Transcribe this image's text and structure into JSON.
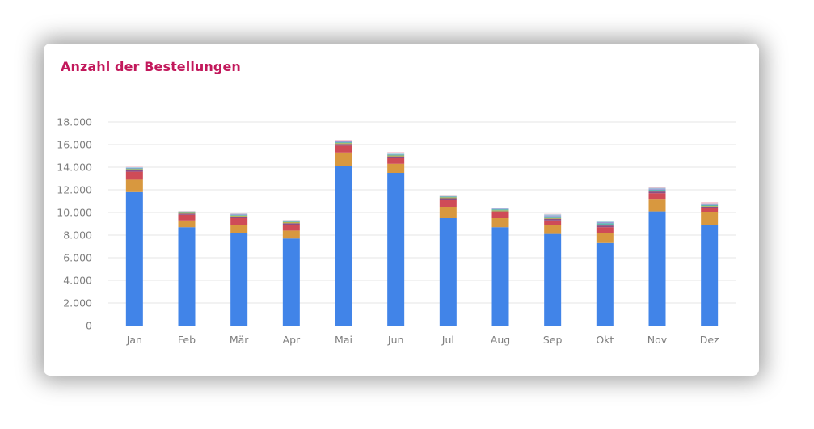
{
  "card": {
    "title": "Anzahl der Bestellungen"
  },
  "colors": {
    "title": "#c2185b",
    "axis_text": "#7f7f7f",
    "gridline": "#e5e5e5",
    "baseline": "#333333"
  },
  "chart_data": {
    "type": "bar",
    "stacked": true,
    "title": "Anzahl der Bestellungen",
    "xlabel": "",
    "ylabel": "",
    "ylim": [
      0,
      18000
    ],
    "grid": true,
    "legend": "none",
    "yticks": [
      0,
      2000,
      4000,
      6000,
      8000,
      10000,
      12000,
      14000,
      16000,
      18000
    ],
    "ytick_labels": [
      "0",
      "2.000",
      "4.000",
      "6.000",
      "8.000",
      "10.000",
      "12.000",
      "14.000",
      "16.000",
      "18.000"
    ],
    "categories": [
      "Jan",
      "Feb",
      "Mär",
      "Apr",
      "Mai",
      "Jun",
      "Jul",
      "Aug",
      "Sep",
      "Okt",
      "Nov",
      "Dez"
    ],
    "series": [
      {
        "color": "#4184e8",
        "values": [
          11800,
          8700,
          8200,
          7700,
          14100,
          13500,
          9500,
          8700,
          8100,
          7300,
          10100,
          8900
        ]
      },
      {
        "color": "#d8983f",
        "values": [
          1100,
          600,
          700,
          700,
          1200,
          800,
          1000,
          800,
          800,
          900,
          1100,
          1100
        ]
      },
      {
        "color": "#cf4b57",
        "values": [
          700,
          500,
          600,
          500,
          600,
          500,
          600,
          500,
          400,
          500,
          500,
          400
        ]
      },
      {
        "color": "#8c4f86",
        "values": [
          150,
          100,
          150,
          150,
          150,
          150,
          150,
          100,
          150,
          150,
          150,
          100
        ]
      },
      {
        "color": "#b7b04a",
        "values": [
          80,
          60,
          80,
          100,
          80,
          80,
          80,
          90,
          60,
          60,
          60,
          60
        ]
      },
      {
        "color": "#5db5b0",
        "values": [
          60,
          60,
          70,
          60,
          80,
          90,
          80,
          90,
          150,
          150,
          100,
          100
        ]
      },
      {
        "color": "#9a9ad4",
        "values": [
          60,
          40,
          60,
          60,
          90,
          100,
          60,
          60,
          100,
          100,
          100,
          100
        ]
      },
      {
        "color": "#a7d6e0",
        "values": [
          50,
          40,
          40,
          40,
          60,
          60,
          50,
          40,
          80,
          80,
          60,
          50
        ]
      },
      {
        "color": "#f0b4c4",
        "values": [
          40,
          30,
          30,
          30,
          50,
          50,
          30,
          30,
          40,
          40,
          50,
          100
        ]
      }
    ]
  }
}
